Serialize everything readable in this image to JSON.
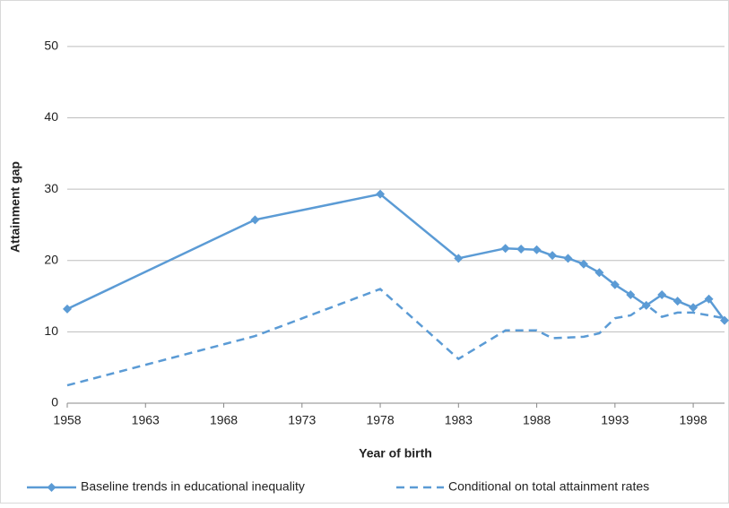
{
  "chart_data": {
    "type": "line",
    "x_label": "Year of birth",
    "y_label": "Attainment gap",
    "x": [
      1958,
      1970,
      1978,
      1983,
      1986,
      1987,
      1988,
      1989,
      1990,
      1991,
      1992,
      1993,
      1994,
      1995,
      1996,
      1997,
      1998,
      1999,
      2000
    ],
    "series": [
      {
        "name": "Baseline trends in educational inequality",
        "color": "#5b9bd5",
        "style": "solid",
        "marker": true,
        "values": [
          13.2,
          25.7,
          29.3,
          20.3,
          21.7,
          21.6,
          21.5,
          20.7,
          20.3,
          19.5,
          18.3,
          16.6,
          15.2,
          13.7,
          15.2,
          14.3,
          13.4,
          14.6,
          11.6
        ]
      },
      {
        "name": "Conditional on total attainment rates",
        "color": "#5b9bd5",
        "style": "dashed",
        "marker": false,
        "values": [
          2.5,
          9.4,
          16.0,
          6.2,
          10.2,
          10.2,
          10.2,
          9.1,
          9.2,
          9.3,
          9.8,
          11.9,
          12.3,
          13.8,
          12.1,
          12.7,
          12.7,
          12.3,
          11.9
        ]
      }
    ],
    "xlim": [
      1958,
      2000
    ],
    "ylim": [
      0,
      55
    ],
    "xticks": [
      1958,
      1963,
      1968,
      1973,
      1978,
      1983,
      1988,
      1993,
      1998
    ],
    "yticks": [
      0,
      10,
      20,
      30,
      40,
      50
    ],
    "grid": true,
    "legend": "bottom"
  }
}
